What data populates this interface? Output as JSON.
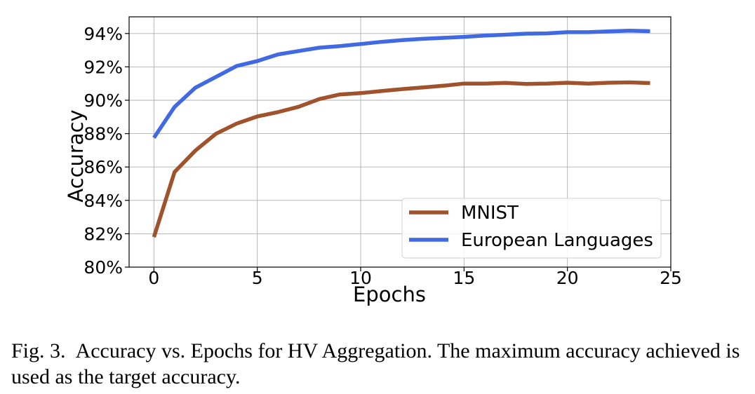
{
  "chart_data": {
    "type": "line",
    "xlabel": "Epochs",
    "ylabel": "Accuracy",
    "xlim": [
      -1.2,
      25.0
    ],
    "ylim": [
      80,
      95
    ],
    "x_ticks": [
      0,
      5,
      10,
      15,
      20,
      25
    ],
    "x_tick_labels": [
      "0",
      "5",
      "10",
      "15",
      "20",
      "25"
    ],
    "y_ticks": [
      80,
      82,
      84,
      86,
      88,
      90,
      92,
      94
    ],
    "y_tick_labels": [
      "80%",
      "82%",
      "84%",
      "86%",
      "88%",
      "90%",
      "92%",
      "94%"
    ],
    "grid": true,
    "legend_position": "lower-right",
    "x": [
      0,
      1,
      2,
      3,
      4,
      5,
      6,
      7,
      8,
      9,
      10,
      11,
      12,
      13,
      14,
      15,
      16,
      17,
      18,
      19,
      20,
      21,
      22,
      23,
      24
    ],
    "series": [
      {
        "name": "MNIST",
        "color": "#a0522d",
        "values": [
          81.8,
          85.7,
          86.98,
          87.99,
          88.6,
          89.03,
          89.29,
          89.61,
          90.07,
          90.35,
          90.43,
          90.55,
          90.67,
          90.77,
          90.87,
          91.0,
          91.0,
          91.04,
          90.98,
          91.0,
          91.05,
          91.0,
          91.05,
          91.07,
          91.03
        ]
      },
      {
        "name": "European Languages",
        "color": "#4169e1",
        "values": [
          87.75,
          89.6,
          90.75,
          91.4,
          92.05,
          92.35,
          92.75,
          92.95,
          93.15,
          93.25,
          93.37,
          93.5,
          93.6,
          93.68,
          93.74,
          93.8,
          93.88,
          93.93,
          93.99,
          94.01,
          94.08,
          94.08,
          94.13,
          94.17,
          94.14
        ]
      }
    ]
  },
  "caption": {
    "label": "Fig. 3.",
    "text": "Accuracy vs. Epochs for HV Aggregation. The maximum accuracy achieved is used as the target accuracy."
  }
}
